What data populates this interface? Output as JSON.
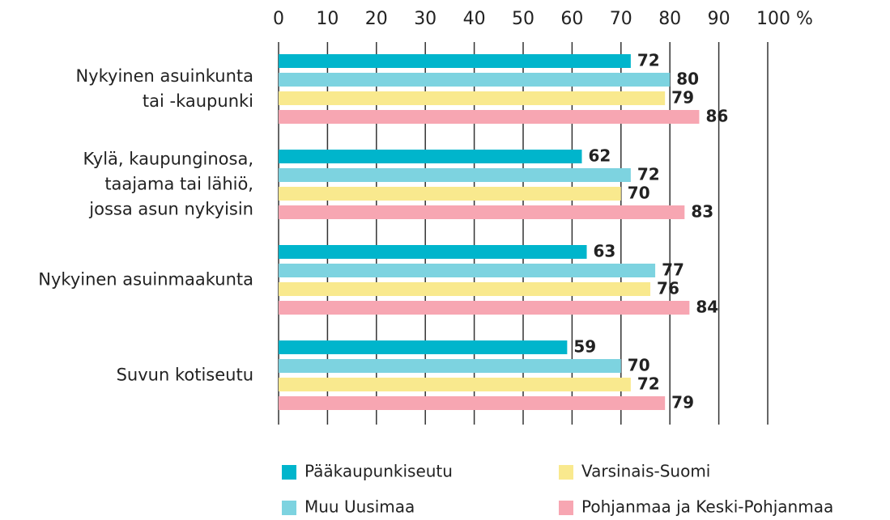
{
  "chart_data": {
    "type": "bar",
    "orientation": "horizontal",
    "categories": [
      "Nykyinen asuinkunta\ntai -kaupunki",
      "Kylä, kaupunginosa,\ntaajama tai lähiö,\njossa asun nykyisin",
      "Nykyinen asuinmaakunta",
      "Suvun kotiseutu"
    ],
    "series": [
      {
        "name": "Pääkaupunkiseutu",
        "color": "#00b5cc",
        "values": [
          72,
          62,
          63,
          59
        ]
      },
      {
        "name": "Muu Uusimaa",
        "color": "#7dd3e0",
        "values": [
          80,
          72,
          77,
          70
        ]
      },
      {
        "name": "Varsinais-Suomi",
        "color": "#f9e98e",
        "values": [
          79,
          70,
          76,
          72
        ]
      },
      {
        "name": "Pohjanmaa ja Keski-Pohjanmaa",
        "color": "#f7a6b2",
        "values": [
          86,
          83,
          84,
          79
        ]
      }
    ],
    "xlim": [
      0,
      100
    ],
    "xticks": [
      0,
      10,
      20,
      30,
      40,
      50,
      60,
      70,
      80,
      90,
      {
        "value": 100,
        "label": "100 %"
      }
    ],
    "grid": true,
    "legend": "bottom"
  }
}
